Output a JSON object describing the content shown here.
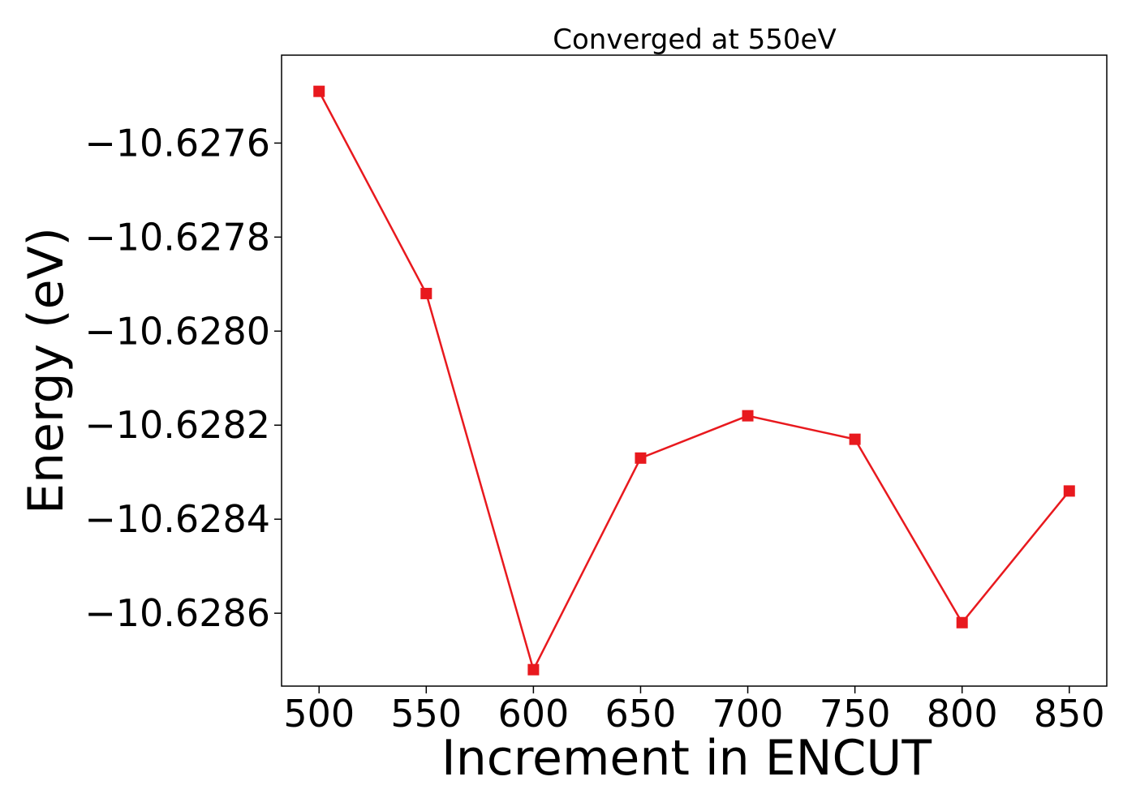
{
  "chart_data": {
    "type": "line",
    "title": "Converged at 550eV",
    "xlabel": "Increment in ENCUT",
    "ylabel": "Energy (eV)",
    "x": [
      500,
      550,
      600,
      650,
      700,
      750,
      800,
      850
    ],
    "series": [
      {
        "values": [
          -10.62749,
          -10.62792,
          -10.62872,
          -10.62827,
          -10.62818,
          -10.62823,
          -10.62862,
          -10.62834
        ],
        "color": "#e8191e",
        "marker": "square"
      }
    ],
    "xticks": [
      500,
      550,
      600,
      650,
      700,
      750,
      800,
      850
    ],
    "xtick_labels": [
      "500",
      "550",
      "600",
      "650",
      "700",
      "750",
      "800",
      "850"
    ],
    "yticks": [
      -10.6276,
      -10.6278,
      -10.628,
      -10.6282,
      -10.6284,
      -10.6286
    ],
    "ytick_labels": [
      "−10.6276",
      "−10.6278",
      "−10.6280",
      "−10.6282",
      "−10.6284",
      "−10.6286"
    ],
    "xlim": [
      482.5,
      867.5
    ],
    "ylim": [
      -10.628755,
      -10.627413
    ],
    "grid": false,
    "legend": false
  }
}
